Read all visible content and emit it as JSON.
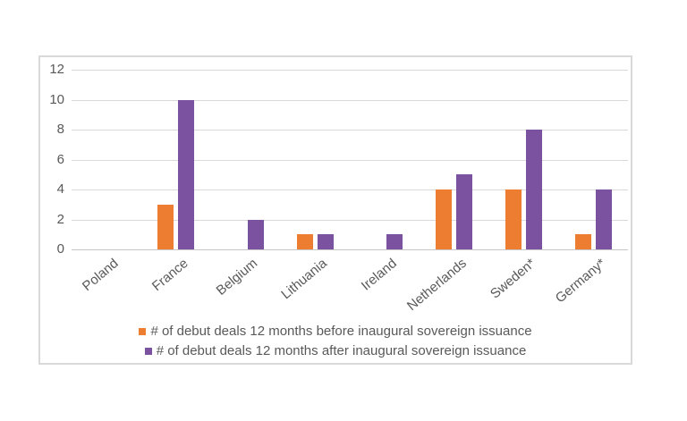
{
  "chart_data": {
    "type": "bar",
    "title": "",
    "categories": [
      "Poland",
      "France",
      "Belgium",
      "Lithuania",
      "Ireland",
      "Netherlands",
      "Sweden*",
      "Germany*"
    ],
    "series": [
      {
        "name": "# of debut deals 12 months before inaugural sovereign issuance",
        "color": "#ED7D31",
        "values": [
          0,
          3,
          0,
          1,
          0,
          4,
          4,
          1
        ]
      },
      {
        "name": "# of debut deals 12 months after inaugural sovereign issuance",
        "color": "#7B52A0",
        "values": [
          0,
          10,
          2,
          1,
          1,
          5,
          8,
          4
        ]
      }
    ],
    "xlabel": "",
    "ylabel": "",
    "y_axis": {
      "min": 0,
      "max": 12,
      "step": 2,
      "ticks": [
        0,
        2,
        4,
        6,
        8,
        10,
        12
      ]
    },
    "grid": true,
    "legend_position": "bottom"
  },
  "colors": {
    "text": "#595959",
    "gridline": "#D9D9D9",
    "axis_line": "#C6C6C6",
    "frame_border": "#D9D9D9",
    "background": "#FFFFFF"
  }
}
